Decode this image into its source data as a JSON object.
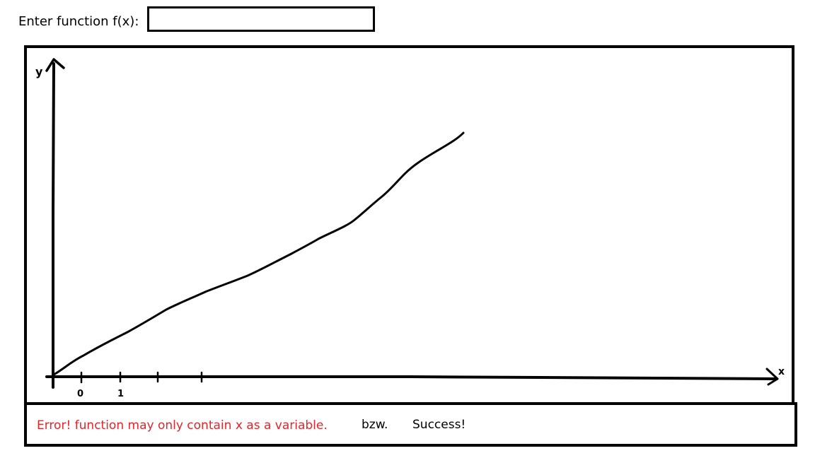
{
  "input": {
    "label": "Enter function f(x):",
    "value": "",
    "placeholder": ""
  },
  "plot": {
    "y_axis_label": "y",
    "x_axis_label": "x",
    "tick_labels": [
      "0",
      "1"
    ]
  },
  "status": {
    "error_text": "Error! function may only contain x as a variable.",
    "separator_text": "bzw.",
    "success_text": "Success!",
    "error_color": "#e0262b"
  }
}
